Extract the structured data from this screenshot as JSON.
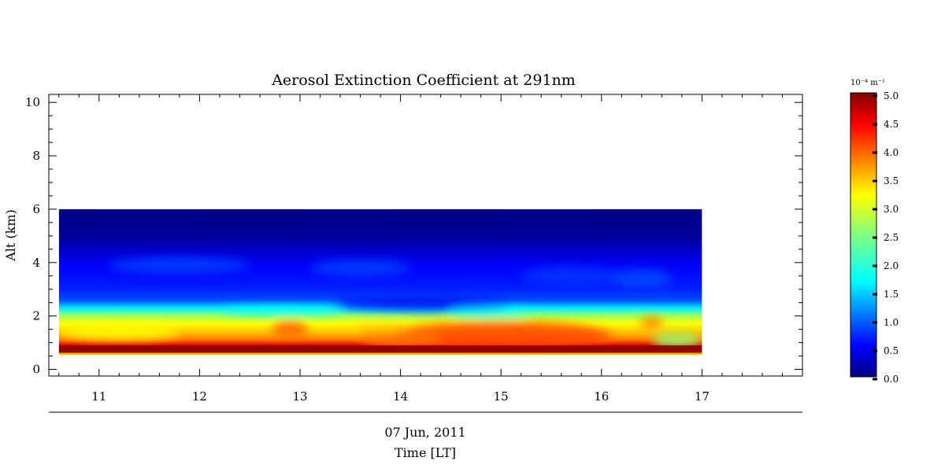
{
  "chart_data": {
    "type": "heatmap",
    "title": "Aerosol Extinction Coefficient at 291nm",
    "xlabel": "Time [LT]",
    "date_label": "07 Jun, 2011",
    "ylabel": "Alt (km)",
    "xlim": [
      10.5,
      18.0
    ],
    "ylim": [
      -0.25,
      10.3
    ],
    "x_ticks": [
      11,
      12,
      13,
      14,
      15,
      16,
      17
    ],
    "y_ticks": [
      0,
      2,
      4,
      6,
      8,
      10
    ],
    "data_x_range": [
      10.6,
      17.0
    ],
    "data_y_range": [
      0.55,
      6.0
    ],
    "colorbar": {
      "unit_label": "10⁻⁴ m⁻¹",
      "range": [
        0.0,
        5.0
      ],
      "ticks": [
        "0.0",
        "0.5",
        "1.0",
        "1.5",
        "2.0",
        "2.5",
        "3.0",
        "3.5",
        "4.0",
        "4.5",
        "5.0"
      ],
      "colormap": "jet"
    },
    "altitude_profile_km": [
      0.6,
      0.75,
      0.9,
      1.1,
      1.3,
      1.5,
      1.7,
      1.9,
      2.1,
      2.3,
      2.6,
      3.0,
      3.5,
      4.0,
      4.5,
      5.0,
      5.5,
      6.0
    ],
    "profile_values": [
      3.4,
      4.9,
      4.6,
      3.9,
      3.6,
      3.4,
      3.2,
      2.9,
      2.4,
      1.6,
      0.9,
      0.7,
      0.6,
      0.5,
      0.3,
      0.1,
      0.05,
      0.02
    ]
  }
}
